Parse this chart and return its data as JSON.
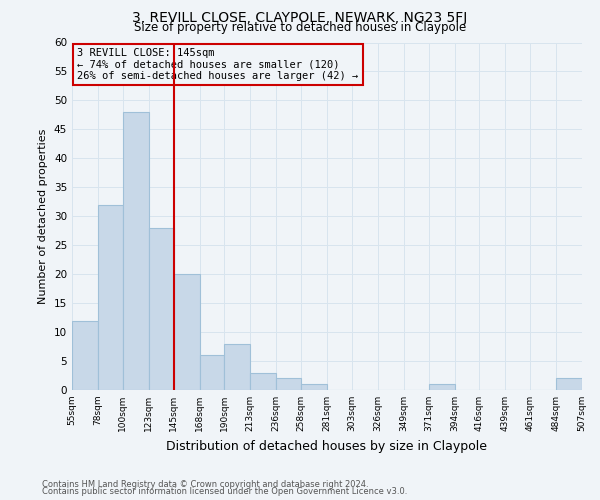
{
  "title": "3, REVILL CLOSE, CLAYPOLE, NEWARK, NG23 5FJ",
  "subtitle": "Size of property relative to detached houses in Claypole",
  "xlabel": "Distribution of detached houses by size in Claypole",
  "ylabel": "Number of detached properties",
  "bar_color": "#c8d8e8",
  "bar_edge_color": "#a0c0d8",
  "bin_edges": [
    55,
    78,
    100,
    123,
    145,
    168,
    190,
    213,
    236,
    258,
    281,
    303,
    326,
    349,
    371,
    394,
    416,
    439,
    461,
    484,
    507
  ],
  "bin_labels": [
    "55sqm",
    "78sqm",
    "100sqm",
    "123sqm",
    "145sqm",
    "168sqm",
    "190sqm",
    "213sqm",
    "236sqm",
    "258sqm",
    "281sqm",
    "303sqm",
    "326sqm",
    "349sqm",
    "371sqm",
    "394sqm",
    "416sqm",
    "439sqm",
    "461sqm",
    "484sqm",
    "507sqm"
  ],
  "counts": [
    12,
    32,
    48,
    28,
    20,
    6,
    8,
    3,
    2,
    1,
    0,
    0,
    0,
    0,
    1,
    0,
    0,
    0,
    0,
    2
  ],
  "vline_x": 145,
  "vline_color": "#cc0000",
  "annotation_title": "3 REVILL CLOSE: 145sqm",
  "annotation_line1": "← 74% of detached houses are smaller (120)",
  "annotation_line2": "26% of semi-detached houses are larger (42) →",
  "annotation_box_color": "#cc0000",
  "ylim": [
    0,
    60
  ],
  "yticks": [
    0,
    5,
    10,
    15,
    20,
    25,
    30,
    35,
    40,
    45,
    50,
    55,
    60
  ],
  "footer_line1": "Contains HM Land Registry data © Crown copyright and database right 2024.",
  "footer_line2": "Contains public sector information licensed under the Open Government Licence v3.0.",
  "background_color": "#f0f4f8",
  "grid_color": "#d8e4ee"
}
